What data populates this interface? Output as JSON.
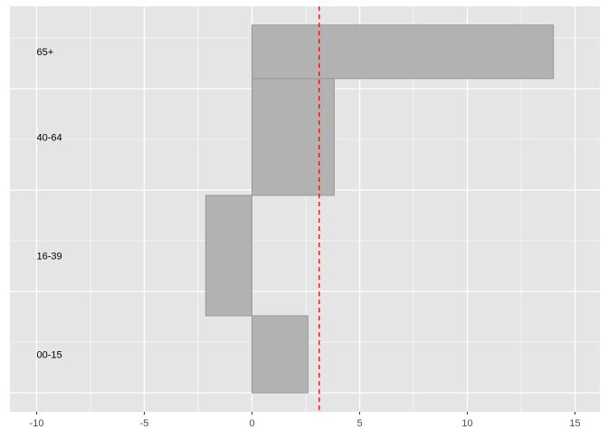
{
  "chart_data": {
    "type": "bar",
    "orientation": "horizontal",
    "variable_width": true,
    "categories": [
      "00-15",
      "16-39",
      "40-64",
      "65+"
    ],
    "values": [
      2.6,
      -2.15,
      3.82,
      14.0
    ],
    "bar_heights": [
      19.0,
      29.7,
      28.8,
      13.2
    ],
    "reference_line": {
      "x": 3.12,
      "style": "dashed",
      "color": "#ff0000"
    },
    "xlim": [
      -11.25,
      16.15
    ],
    "ylim": [
      0,
      100
    ],
    "x_ticks": [
      -10,
      -5,
      0,
      5,
      10,
      15
    ],
    "x_tick_labels": [
      "-10",
      "-5",
      "0",
      "5",
      "10",
      "15"
    ],
    "label_x": -10,
    "title": "",
    "xlabel": "",
    "ylabel": "",
    "grid": true,
    "colors": {
      "panel": "#e5e5e5",
      "grid": "#ffffff",
      "bar_fill": "#b2b2b2",
      "bar_stroke": "#999999"
    }
  }
}
